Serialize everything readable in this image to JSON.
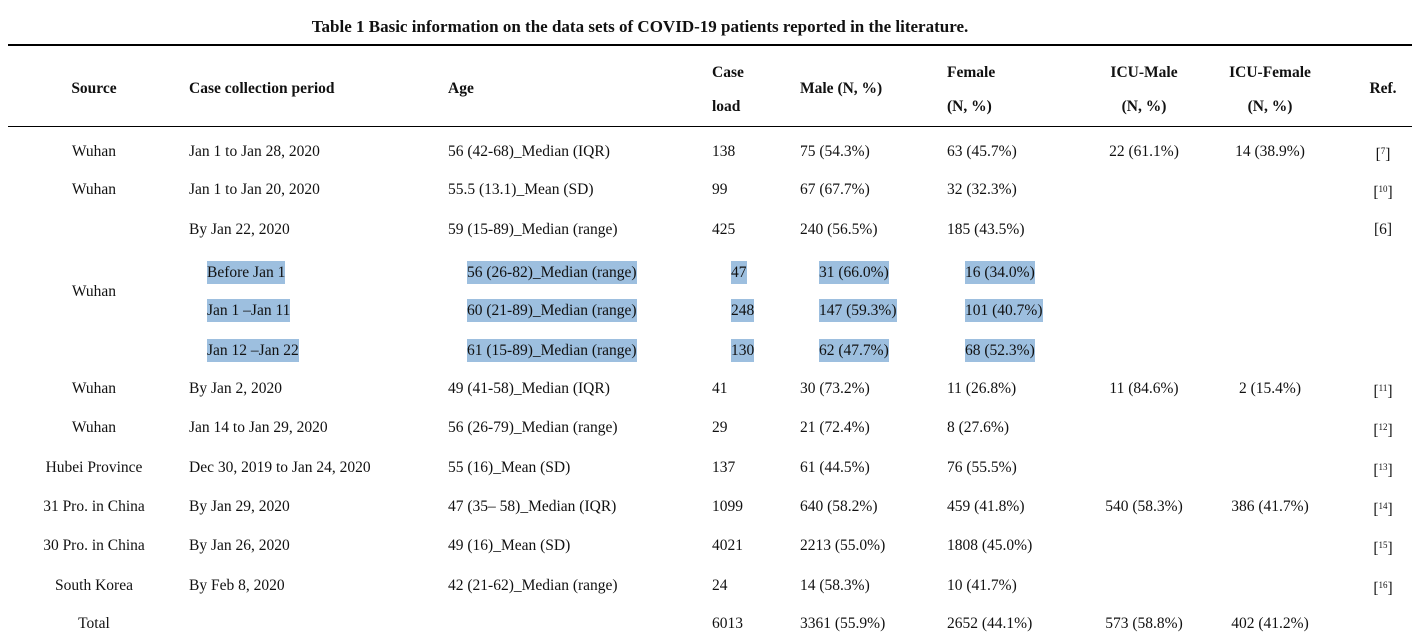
{
  "caption": "Table 1 Basic information on the data sets of COVID-19 patients reported in the literature.",
  "headers": {
    "source": "Source",
    "period": "Case collection period",
    "age": "Age",
    "case_1": "Case",
    "case_2": "load",
    "male": "Male (N, %)",
    "female_1": "Female",
    "female_2": "(N, %)",
    "icu_male_1": "ICU-Male",
    "icu_male_2": "(N, %)",
    "icu_female_1": "ICU-Female",
    "icu_female_2": "(N, %)",
    "ref": "Ref."
  },
  "rows": [
    {
      "source": "Wuhan",
      "period": "Jan 1 to Jan 28, 2020",
      "age": "56 (42-68)_Median (IQR)",
      "case": "138",
      "male": "75 (54.3%)",
      "female": "63 (45.7%)",
      "icu_male": "22 (61.1%)",
      "icu_female": "14 (38.9%)",
      "ref": "7"
    },
    {
      "source": "Wuhan",
      "period": "Jan 1 to Jan 20, 2020",
      "age": "55.5 (13.1)_Mean (SD)",
      "case": "99",
      "male": "67 (67.7%)",
      "female": "32 (32.3%)",
      "icu_male": "",
      "icu_female": "",
      "ref": "10"
    },
    {
      "source": "",
      "period": "By Jan 22, 2020",
      "age": "59 (15-89)_Median (range)",
      "case": "425",
      "male": "240 (56.5%)",
      "female": "185 (43.5%)",
      "icu_male": "",
      "icu_female": "",
      "ref": "[6]"
    },
    {
      "source": "",
      "period": "Before Jan 1",
      "age": "56 (26-82)_Median (range)",
      "case": "47",
      "male": "31 (66.0%)",
      "female": "16 (34.0%)",
      "icu_male": "",
      "icu_female": "",
      "ref": ""
    },
    {
      "source": "",
      "period": "Jan 1 –Jan 11",
      "age": "60 (21-89)_Median (range)",
      "case": "248",
      "male": "147 (59.3%)",
      "female": "101 (40.7%)",
      "icu_male": "",
      "icu_female": "",
      "ref": ""
    },
    {
      "source": "",
      "period": "Jan 12 –Jan 22",
      "age": "61 (15-89)_Median (range)",
      "case": "130",
      "male": "62 (47.7%)",
      "female": "68 (52.3%)",
      "icu_male": "",
      "icu_female": "",
      "ref": ""
    },
    {
      "source": "Wuhan",
      "period": "By Jan 2, 2020",
      "age": "49 (41-58)_Median (IQR)",
      "case": "41",
      "male": "30 (73.2%)",
      "female": "11 (26.8%)",
      "icu_male": "11 (84.6%)",
      "icu_female": "2 (15.4%)",
      "ref": "11"
    },
    {
      "source": "Wuhan",
      "period": "Jan 14 to Jan 29, 2020",
      "age": "56 (26-79)_Median (range)",
      "case": "29",
      "male": "21 (72.4%)",
      "female": "8 (27.6%)",
      "icu_male": "",
      "icu_female": "",
      "ref": "12"
    },
    {
      "source": "Hubei Province",
      "period": "Dec 30, 2019 to Jan 24, 2020",
      "age": "55 (16)_Mean (SD)",
      "case": "137",
      "male": "61 (44.5%)",
      "female": "76 (55.5%)",
      "icu_male": "",
      "icu_female": "",
      "ref": "13"
    },
    {
      "source": "31 Pro. in China",
      "period": "By Jan 29, 2020",
      "age": "47 (35– 58)_Median (IQR)",
      "case": "1099",
      "male": "640 (58.2%)",
      "female": "459 (41.8%)",
      "icu_male": "540 (58.3%)",
      "icu_female": "386 (41.7%)",
      "ref": "14"
    },
    {
      "source": "30 Pro. in China",
      "period": "By Jan 26, 2020",
      "age": "49 (16)_Mean (SD)",
      "case": "4021",
      "male": "2213 (55.0%)",
      "female": "1808 (45.0%)",
      "icu_male": "",
      "icu_female": "",
      "ref": "15"
    },
    {
      "source": "South Korea",
      "period": "By Feb 8, 2020",
      "age": "42 (21-62)_Median (range)",
      "case": "24",
      "male": "14 (58.3%)",
      "female": "10 (41.7%)",
      "icu_male": "",
      "icu_female": "",
      "ref": "16"
    },
    {
      "source": "Total",
      "period": "",
      "age": "",
      "case": "6013",
      "male": "3361 (55.9%)",
      "female": "2652 (44.1%)",
      "icu_male": "573 (58.8%)",
      "icu_female": "402 (41.2%)",
      "ref": ""
    }
  ],
  "merged_source": "Wuhan",
  "highlight_color": "#9dbfdf"
}
